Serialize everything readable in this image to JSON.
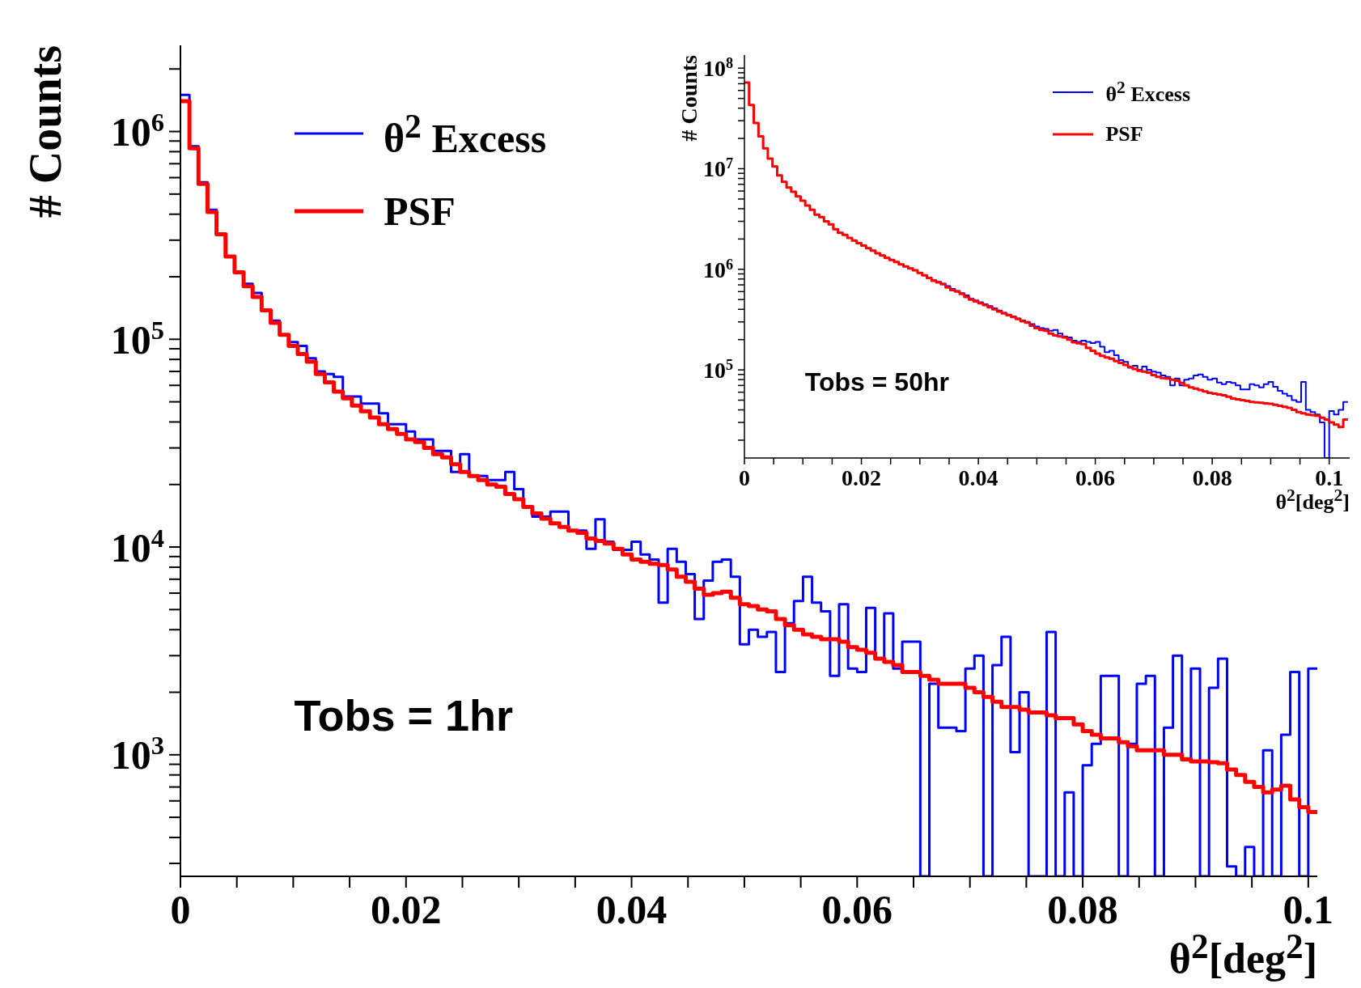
{
  "chart_data": [
    {
      "type": "histogram",
      "xlabel": "θ$^{2}$[deg$^{2}$]",
      "ylabel": "# Counts",
      "log": "y",
      "legend": "top left",
      "annotations": [
        "Tobs = 1hr"
      ],
      "xlim": [
        0,
        0.1008
      ],
      "ylim": [
        260,
        2600000
      ],
      "xticks": [
        0,
        {
          "value": 0.005,
          "label": null
        },
        {
          "value": 0.01,
          "label": null
        },
        {
          "value": 0.015,
          "label": null
        },
        0.02,
        {
          "value": 0.025,
          "label": null
        },
        {
          "value": 0.03,
          "label": null
        },
        {
          "value": 0.035,
          "label": null
        },
        0.04,
        {
          "value": 0.045,
          "label": null
        },
        {
          "value": 0.05,
          "label": null
        },
        {
          "value": 0.055,
          "label": null
        },
        0.06,
        {
          "value": 0.065,
          "label": null
        },
        {
          "value": 0.07,
          "label": null
        },
        {
          "value": 0.075,
          "label": null
        },
        0.08,
        {
          "value": 0.085,
          "label": null
        },
        {
          "value": 0.09,
          "label": null
        },
        {
          "value": 0.095,
          "label": null
        },
        0.1
      ],
      "yticks": [
        {
          "value": 300,
          "label": null
        },
        {
          "value": 400,
          "label": null
        },
        {
          "value": 500,
          "label": null
        },
        {
          "value": 600,
          "label": null
        },
        {
          "value": 700,
          "label": null
        },
        {
          "value": 800,
          "label": null
        },
        {
          "value": 900,
          "label": null
        },
        {
          "value": 1000,
          "label": "10$^{3}$"
        },
        {
          "value": 2000,
          "label": null
        },
        {
          "value": 3000,
          "label": null
        },
        {
          "value": 4000,
          "label": null
        },
        {
          "value": 5000,
          "label": null
        },
        {
          "value": 6000,
          "label": null
        },
        {
          "value": 7000,
          "label": null
        },
        {
          "value": 8000,
          "label": null
        },
        {
          "value": 9000,
          "label": null
        },
        {
          "value": 10000,
          "label": "10$^{4}$"
        },
        {
          "value": 20000,
          "label": null
        },
        {
          "value": 30000,
          "label": null
        },
        {
          "value": 40000,
          "label": null
        },
        {
          "value": 50000,
          "label": null
        },
        {
          "value": 60000,
          "label": null
        },
        {
          "value": 70000,
          "label": null
        },
        {
          "value": 80000,
          "label": null
        },
        {
          "value": 90000,
          "label": null
        },
        {
          "value": 100000,
          "label": "10$^{5}$"
        },
        {
          "value": 200000,
          "label": null
        },
        {
          "value": 300000,
          "label": null
        },
        {
          "value": 400000,
          "label": null
        },
        {
          "value": 500000,
          "label": null
        },
        {
          "value": 600000,
          "label": null
        },
        {
          "value": 700000,
          "label": null
        },
        {
          "value": 800000,
          "label": null
        },
        {
          "value": 900000,
          "label": null
        },
        {
          "value": 1000000,
          "label": "10$^{6}$"
        },
        {
          "value": 2000000,
          "label": null
        }
      ],
      "bins": [
        0,
        0.0008,
        0.0016,
        0.0024,
        0.0032,
        0.004,
        0.0048,
        0.0056,
        0.0064,
        0.0072,
        0.008,
        0.0088,
        0.0096,
        0.0104,
        0.0112,
        0.012,
        0.0128,
        0.0136,
        0.0144,
        0.0152,
        0.016,
        0.0168,
        0.0176,
        0.0184,
        0.0192,
        0.02,
        0.0208,
        0.0216,
        0.0224,
        0.0232,
        0.024,
        0.0248,
        0.0256,
        0.0264,
        0.0272,
        0.028,
        0.0288,
        0.0296,
        0.0304,
        0.0312,
        0.032,
        0.0328,
        0.0336,
        0.0344,
        0.0352,
        0.036,
        0.0368,
        0.0376,
        0.0384,
        0.0392,
        0.04,
        0.0408,
        0.0416,
        0.0424,
        0.0432,
        0.044,
        0.0448,
        0.0456,
        0.0464,
        0.0472,
        0.048,
        0.0488,
        0.0496,
        0.0504,
        0.0512,
        0.052,
        0.0528,
        0.0536,
        0.0544,
        0.0552,
        0.056,
        0.0568,
        0.0576,
        0.0584,
        0.0592,
        0.06,
        0.0608,
        0.0616,
        0.0624,
        0.0632,
        0.064,
        0.0648,
        0.0656,
        0.0664,
        0.0672,
        0.068,
        0.0688,
        0.0696,
        0.0704,
        0.0712,
        0.072,
        0.0728,
        0.0736,
        0.0744,
        0.0752,
        0.076,
        0.0768,
        0.0776,
        0.0784,
        0.0792,
        0.08,
        0.0808,
        0.0816,
        0.0824,
        0.0832,
        0.084,
        0.0848,
        0.0856,
        0.0864,
        0.0872,
        0.088,
        0.0888,
        0.0896,
        0.0904,
        0.0912,
        0.092,
        0.0928,
        0.0936,
        0.0944,
        0.0952,
        0.096,
        0.0968,
        0.0976,
        0.0984,
        0.0992,
        0.1,
        0.1008
      ],
      "series": [
        {
          "name": "θ$^{2}$ Excess",
          "color": "#0000ff",
          "values": [
            1500000,
            850000,
            570000,
            420000,
            320000,
            250000,
            210000,
            185000,
            167000,
            138000,
            123000,
            105000,
            97000,
            93000,
            81000,
            70000,
            68000,
            66000,
            53000,
            53000,
            49000,
            49000,
            44000,
            39000,
            39000,
            36000,
            33000,
            33000,
            29000,
            29000,
            23000,
            28000,
            22000,
            22000,
            21000,
            21000,
            23000,
            19000,
            15600,
            14000,
            14000,
            14800,
            14800,
            12000,
            12000,
            9800,
            13600,
            10600,
            9700,
            9700,
            10600,
            9200,
            8700,
            5400,
            9800,
            8500,
            7400,
            4500,
            6900,
            8500,
            8700,
            7200,
            3400,
            4000,
            3700,
            3900,
            2500,
            4300,
            5500,
            7200,
            5400,
            4900,
            2400,
            5300,
            2600,
            2500,
            5100,
            2900,
            4800,
            2600,
            3500,
            3500,
            null,
            2200,
            1350,
            1350,
            1300,
            2600,
            3000,
            null,
            2700,
            3700,
            1030,
            2000,
            null,
            null,
            3900,
            null,
            660,
            null,
            890,
            1130,
            2400,
            2400,
            null,
            1130,
            2200,
            2400,
            null,
            1350,
            3000,
            960,
            2600,
            null,
            2100,
            2900,
            290,
            null,
            360,
            null,
            1050,
            null,
            1250,
            2500,
            null,
            2600
          ]
        },
        {
          "name": "PSF",
          "color": "#ff0000",
          "values": [
            1400000,
            830000,
            560000,
            410000,
            320000,
            250000,
            210000,
            180000,
            160000,
            138000,
            120000,
            105000,
            93000,
            85000,
            78000,
            68000,
            62000,
            56000,
            52000,
            48000,
            45000,
            42000,
            39000,
            37000,
            35000,
            33000,
            32000,
            30000,
            28000,
            27000,
            25000,
            23000,
            22000,
            21000,
            20000,
            19500,
            18000,
            17000,
            15600,
            14500,
            13700,
            13000,
            12500,
            12000,
            11700,
            11000,
            10700,
            10400,
            9800,
            9200,
            8700,
            8500,
            8300,
            8200,
            7800,
            7200,
            6800,
            6300,
            5900,
            6000,
            6100,
            5700,
            5300,
            5200,
            5000,
            4900,
            4500,
            4200,
            4000,
            3800,
            3700,
            3600,
            3600,
            3500,
            3300,
            3200,
            3100,
            2900,
            2800,
            2700,
            2500,
            2500,
            2400,
            2300,
            2200,
            2200,
            2200,
            2100,
            2000,
            1900,
            1800,
            1700,
            1700,
            1650,
            1600,
            1600,
            1550,
            1500,
            1500,
            1400,
            1300,
            1250,
            1200,
            1200,
            1150,
            1100,
            1050,
            1050,
            1050,
            1000,
            1000,
            950,
            930,
            930,
            920,
            910,
            850,
            800,
            740,
            700,
            660,
            680,
            710,
            610,
            560,
            530
          ]
        }
      ]
    },
    {
      "type": "histogram",
      "xlabel": "θ$^{2}$[deg$^{2}$]",
      "ylabel": "# Counts",
      "log": "y",
      "legend": "top right",
      "annotations": [
        "Tobs = 50hr"
      ],
      "xlim": [
        0,
        0.1035
      ],
      "ylim": [
        13300,
        135000000
      ],
      "xticks": [
        0,
        {
          "value": 0.005,
          "label": null
        },
        {
          "value": 0.01,
          "label": null
        },
        {
          "value": 0.015,
          "label": null
        },
        0.02,
        {
          "value": 0.025,
          "label": null
        },
        {
          "value": 0.03,
          "label": null
        },
        {
          "value": 0.035,
          "label": null
        },
        0.04,
        {
          "value": 0.045,
          "label": null
        },
        {
          "value": 0.05,
          "label": null
        },
        {
          "value": 0.055,
          "label": null
        },
        0.06,
        {
          "value": 0.065,
          "label": null
        },
        {
          "value": 0.07,
          "label": null
        },
        {
          "value": 0.075,
          "label": null
        },
        0.08,
        {
          "value": 0.085,
          "label": null
        },
        {
          "value": 0.09,
          "label": null
        },
        {
          "value": 0.095,
          "label": null
        },
        0.1
      ],
      "yticks": [
        {
          "value": 20000,
          "label": null
        },
        {
          "value": 30000,
          "label": null
        },
        {
          "value": 40000,
          "label": null
        },
        {
          "value": 50000,
          "label": null
        },
        {
          "value": 60000,
          "label": null
        },
        {
          "value": 70000,
          "label": null
        },
        {
          "value": 80000,
          "label": null
        },
        {
          "value": 90000,
          "label": null
        },
        {
          "value": 100000,
          "label": "10$^{5}$"
        },
        {
          "value": 200000,
          "label": null
        },
        {
          "value": 300000,
          "label": null
        },
        {
          "value": 400000,
          "label": null
        },
        {
          "value": 500000,
          "label": null
        },
        {
          "value": 600000,
          "label": null
        },
        {
          "value": 700000,
          "label": null
        },
        {
          "value": 800000,
          "label": null
        },
        {
          "value": 900000,
          "label": null
        },
        {
          "value": 1000000,
          "label": "10$^{6}$"
        },
        {
          "value": 2000000,
          "label": null
        },
        {
          "value": 3000000,
          "label": null
        },
        {
          "value": 4000000,
          "label": null
        },
        {
          "value": 5000000,
          "label": null
        },
        {
          "value": 6000000,
          "label": null
        },
        {
          "value": 7000000,
          "label": null
        },
        {
          "value": 8000000,
          "label": null
        },
        {
          "value": 9000000,
          "label": null
        },
        {
          "value": 10000000,
          "label": "10$^{7}$"
        },
        {
          "value": 20000000,
          "label": null
        },
        {
          "value": 30000000,
          "label": null
        },
        {
          "value": 40000000,
          "label": null
        },
        {
          "value": 50000000,
          "label": null
        },
        {
          "value": 60000000,
          "label": null
        },
        {
          "value": 70000000,
          "label": null
        },
        {
          "value": 80000000,
          "label": null
        },
        {
          "value": 90000000,
          "label": null
        },
        {
          "value": 100000000,
          "label": "10$^{8}$"
        }
      ],
      "bins": [
        0,
        0.0008,
        0.0016,
        0.0024,
        0.0032,
        0.004,
        0.0048,
        0.0056,
        0.0064,
        0.0072,
        0.008,
        0.0088,
        0.0096,
        0.0104,
        0.0112,
        0.012,
        0.0128,
        0.0136,
        0.0144,
        0.0152,
        0.016,
        0.0168,
        0.0176,
        0.0184,
        0.0192,
        0.02,
        0.0208,
        0.0216,
        0.0224,
        0.0232,
        0.024,
        0.0248,
        0.0256,
        0.0264,
        0.0272,
        0.028,
        0.0288,
        0.0296,
        0.0304,
        0.0312,
        0.032,
        0.0328,
        0.0336,
        0.0344,
        0.0352,
        0.036,
        0.0368,
        0.0376,
        0.0384,
        0.0392,
        0.04,
        0.0408,
        0.0416,
        0.0424,
        0.0432,
        0.044,
        0.0448,
        0.0456,
        0.0464,
        0.0472,
        0.048,
        0.0488,
        0.0496,
        0.0504,
        0.0512,
        0.052,
        0.0528,
        0.0536,
        0.0544,
        0.0552,
        0.056,
        0.0568,
        0.0576,
        0.0584,
        0.0592,
        0.06,
        0.0608,
        0.0616,
        0.0624,
        0.0632,
        0.064,
        0.0648,
        0.0656,
        0.0664,
        0.0672,
        0.068,
        0.0688,
        0.0696,
        0.0704,
        0.0712,
        0.072,
        0.0728,
        0.0736,
        0.0744,
        0.0752,
        0.076,
        0.0768,
        0.0776,
        0.0784,
        0.0792,
        0.08,
        0.0808,
        0.0816,
        0.0824,
        0.0832,
        0.084,
        0.0848,
        0.0856,
        0.0864,
        0.0872,
        0.088,
        0.0888,
        0.0896,
        0.0904,
        0.0912,
        0.092,
        0.0928,
        0.0936,
        0.0944,
        0.0952,
        0.096,
        0.0968,
        0.0976,
        0.0984,
        0.0992,
        0.1,
        0.1008,
        0.1016,
        0.1024,
        0.1032
      ],
      "series": [
        {
          "name": "θ$^{2}$ Excess",
          "color": "#0000ff",
          "values": [
            72000000,
            43000000,
            28500000,
            21000000,
            16000000,
            12600000,
            10500000,
            8600000,
            7400000,
            6500000,
            5900000,
            5300000,
            4800000,
            4300000,
            3900000,
            3500000,
            3300000,
            3000000,
            2800000,
            2500000,
            2300000,
            2200000,
            2050000,
            1930000,
            1820000,
            1720000,
            1620000,
            1530000,
            1440000,
            1370000,
            1300000,
            1240000,
            1180000,
            1120000,
            1070000,
            1020000,
            980000,
            920000,
            870000,
            820000,
            780000,
            750000,
            720000,
            680000,
            640000,
            610000,
            580000,
            550000,
            510000,
            490000,
            470000,
            450000,
            430000,
            410000,
            390000,
            370000,
            355000,
            340000,
            325000,
            310000,
            300000,
            285000,
            270000,
            260000,
            255000,
            245000,
            250000,
            230000,
            215000,
            210000,
            195000,
            190000,
            195000,
            190000,
            185000,
            190000,
            170000,
            150000,
            155000,
            140000,
            125000,
            120000,
            105000,
            110000,
            100000,
            108000,
            100000,
            96000,
            94000,
            88000,
            85000,
            70000,
            82000,
            70000,
            80000,
            82000,
            88000,
            90000,
            85000,
            80000,
            82000,
            75000,
            72000,
            76000,
            74000,
            70000,
            64000,
            64000,
            72000,
            70000,
            67000,
            72000,
            76000,
            68000,
            62000,
            58000,
            55000,
            50000,
            48000,
            76000,
            40000,
            38000,
            36000,
            30000,
            null,
            39000,
            36000,
            40000,
            48000
          ]
        },
        {
          "name": "PSF",
          "color": "#ff0000",
          "values": [
            72000000,
            43000000,
            28500000,
            21000000,
            16000000,
            12600000,
            10500000,
            8600000,
            7400000,
            6500000,
            5900000,
            5300000,
            4800000,
            4300000,
            3900000,
            3500000,
            3300000,
            3000000,
            2800000,
            2500000,
            2300000,
            2200000,
            2050000,
            1930000,
            1820000,
            1720000,
            1620000,
            1530000,
            1440000,
            1370000,
            1300000,
            1240000,
            1180000,
            1120000,
            1070000,
            1020000,
            980000,
            920000,
            870000,
            820000,
            770000,
            740000,
            710000,
            660000,
            620000,
            600000,
            570000,
            530000,
            500000,
            480000,
            460000,
            440000,
            420000,
            400000,
            380000,
            365000,
            350000,
            335000,
            320000,
            305000,
            295000,
            275000,
            260000,
            250000,
            245000,
            230000,
            220000,
            215000,
            210000,
            200000,
            188000,
            184000,
            180000,
            165000,
            155000,
            145000,
            138000,
            133000,
            129000,
            122000,
            117000,
            112000,
            107000,
            102000,
            98000,
            96000,
            94000,
            89000,
            85000,
            83000,
            82000,
            80000,
            78000,
            74000,
            70000,
            67000,
            65000,
            63000,
            61000,
            59000,
            58000,
            57000,
            56000,
            54000,
            52000,
            51000,
            50000,
            49000,
            48000,
            47500,
            47000,
            46500,
            46000,
            45000,
            44000,
            43000,
            42000,
            40000,
            38000,
            37000,
            36000,
            35500,
            35000,
            33500,
            32000,
            30000,
            28500,
            27000,
            32000
          ]
        }
      ]
    }
  ]
}
